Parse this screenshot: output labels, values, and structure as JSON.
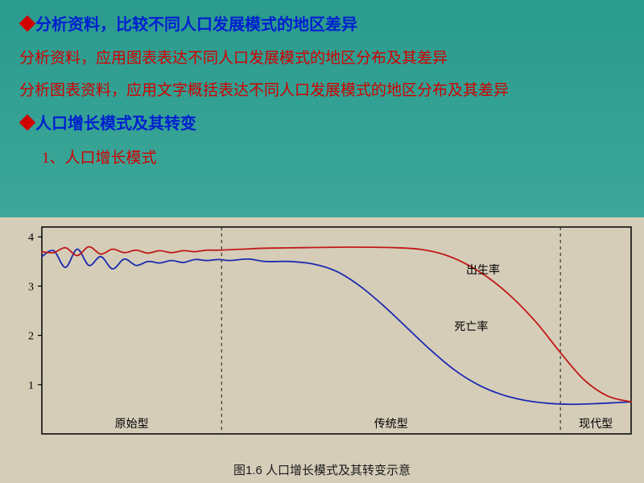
{
  "headings": {
    "h1": "分析资料，比较不同人口发展模式的地区差异",
    "line2": "分析资料，应用图表表达不同人口发展模式的地区分布及其差异",
    "line3": "分析图表资料，应用文字概括表达不同人口发展模式的地区分布及其差异",
    "h2": "人口增长模式及其转变",
    "sub1": "1、人口增长模式"
  },
  "chart": {
    "type": "line",
    "caption": "图1.6  人口增长模式及其转变示意",
    "ylabel_ticks": [
      1,
      2,
      3,
      4
    ],
    "ylim": [
      0,
      4.2
    ],
    "xlim": [
      0,
      100
    ],
    "background_color": "#d5cdb8",
    "axis_color": "#000000",
    "grid_dash_color": "#1a1a1a",
    "section_labels": {
      "s1": "原始型",
      "s2": "传统型",
      "s3": "现代型"
    },
    "section_divisions": [
      30.5,
      88
    ],
    "series": {
      "birth": {
        "label": "出生率",
        "color": "#c01818",
        "width": 1.8,
        "points": [
          [
            0,
            3.7
          ],
          [
            2,
            3.68
          ],
          [
            4,
            3.78
          ],
          [
            6,
            3.62
          ],
          [
            8,
            3.8
          ],
          [
            10,
            3.65
          ],
          [
            12,
            3.75
          ],
          [
            14,
            3.68
          ],
          [
            16,
            3.73
          ],
          [
            18,
            3.67
          ],
          [
            20,
            3.72
          ],
          [
            22,
            3.68
          ],
          [
            24,
            3.72
          ],
          [
            26,
            3.7
          ],
          [
            28,
            3.73
          ],
          [
            30,
            3.73
          ],
          [
            34,
            3.75
          ],
          [
            38,
            3.77
          ],
          [
            44,
            3.78
          ],
          [
            50,
            3.79
          ],
          [
            56,
            3.79
          ],
          [
            60,
            3.78
          ],
          [
            64,
            3.75
          ],
          [
            68,
            3.65
          ],
          [
            72,
            3.45
          ],
          [
            76,
            3.15
          ],
          [
            80,
            2.75
          ],
          [
            84,
            2.25
          ],
          [
            88,
            1.65
          ],
          [
            92,
            1.1
          ],
          [
            96,
            0.77
          ],
          [
            100,
            0.65
          ]
        ]
      },
      "death": {
        "label": "死亡率",
        "color": "#1a2ab0",
        "width": 1.8,
        "points": [
          [
            0,
            3.6
          ],
          [
            2,
            3.72
          ],
          [
            4,
            3.38
          ],
          [
            6,
            3.75
          ],
          [
            8,
            3.42
          ],
          [
            10,
            3.6
          ],
          [
            12,
            3.35
          ],
          [
            14,
            3.55
          ],
          [
            16,
            3.42
          ],
          [
            18,
            3.5
          ],
          [
            20,
            3.47
          ],
          [
            22,
            3.52
          ],
          [
            24,
            3.48
          ],
          [
            26,
            3.54
          ],
          [
            28,
            3.52
          ],
          [
            30,
            3.54
          ],
          [
            32,
            3.52
          ],
          [
            35,
            3.55
          ],
          [
            38,
            3.5
          ],
          [
            42,
            3.5
          ],
          [
            46,
            3.45
          ],
          [
            50,
            3.3
          ],
          [
            54,
            3.0
          ],
          [
            58,
            2.6
          ],
          [
            62,
            2.15
          ],
          [
            66,
            1.7
          ],
          [
            70,
            1.3
          ],
          [
            74,
            1.0
          ],
          [
            78,
            0.8
          ],
          [
            82,
            0.68
          ],
          [
            86,
            0.62
          ],
          [
            90,
            0.6
          ],
          [
            95,
            0.62
          ],
          [
            100,
            0.65
          ]
        ]
      }
    },
    "label_positions": {
      "birth": [
        72,
        3.25
      ],
      "death": [
        70,
        2.1
      ]
    },
    "label_fontsize": 14,
    "tick_fontsize": 14
  }
}
